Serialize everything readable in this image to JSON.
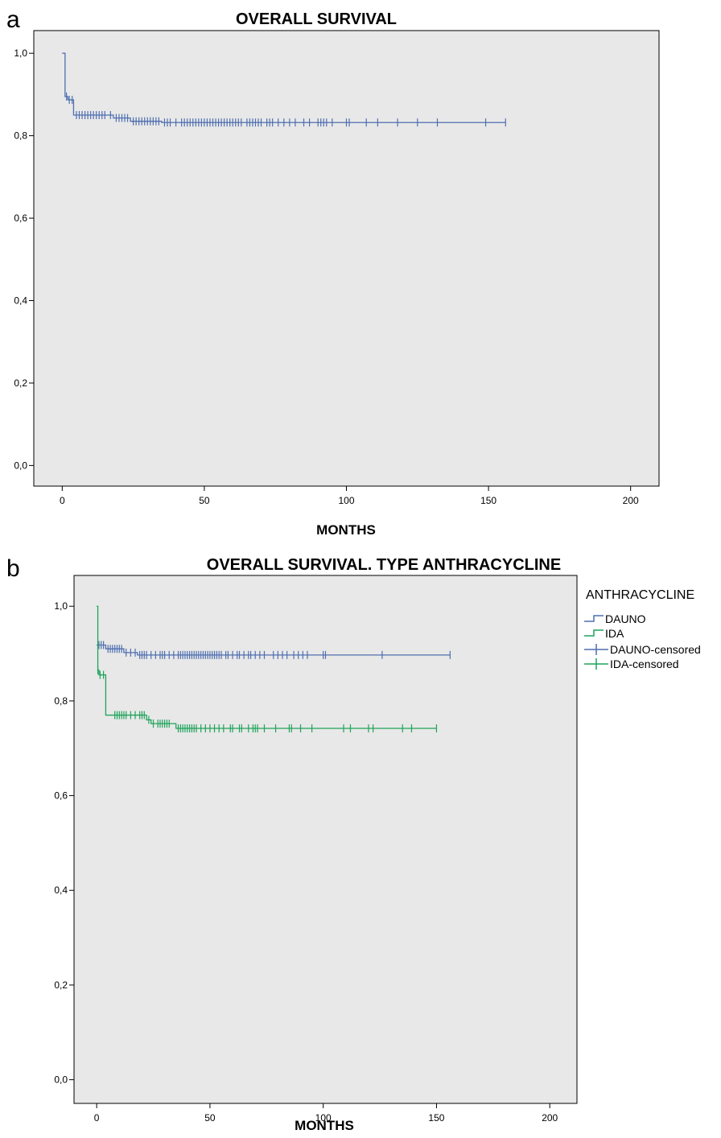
{
  "chart_data": [
    {
      "type": "line",
      "panel_label": "a",
      "title": "OVERALL SURVIVAL",
      "xlabel": "MONTHS",
      "ylabel": "",
      "xlim": [
        -10,
        210
      ],
      "ylim": [
        -0.05,
        1.055
      ],
      "xticks": [
        "0",
        "50",
        "100",
        "150",
        "200"
      ],
      "xtick_values": [
        0,
        50,
        100,
        150,
        200
      ],
      "yticks": [
        "0,0",
        "0,2",
        "0,4",
        "0,6",
        "0,8",
        "1,0"
      ],
      "ytick_values": [
        0,
        0.2,
        0.4,
        0.6,
        0.8,
        1.0
      ],
      "background": "#e8e8e8",
      "grid": false,
      "series": [
        {
          "color": "#4f6fb0",
          "steps": [
            [
              0,
              1.0
            ],
            [
              1,
              0.895
            ],
            [
              2,
              0.887
            ],
            [
              4,
              0.85
            ],
            [
              18,
              0.843
            ],
            [
              24,
              0.835
            ],
            [
              35,
              0.832
            ],
            [
              156,
              0.832
            ]
          ],
          "censored": [
            1.5,
            2.5,
            3.5,
            5,
            6,
            7,
            8,
            9,
            10,
            11,
            12,
            13,
            14,
            15,
            17,
            19,
            20,
            21,
            22,
            23,
            25,
            26,
            27,
            28,
            29,
            30,
            31,
            32,
            33,
            34,
            36,
            37,
            38,
            40,
            42,
            43,
            44,
            45,
            46,
            47,
            48,
            49,
            50,
            51,
            52,
            53,
            54,
            55,
            56,
            57,
            58,
            59,
            60,
            61,
            62,
            63,
            65,
            66,
            67,
            68,
            69,
            70,
            72,
            73,
            74,
            76,
            78,
            80,
            82,
            85,
            87,
            90,
            91,
            92,
            93,
            95,
            100,
            101,
            107,
            111,
            118,
            125,
            132,
            149,
            156
          ]
        }
      ]
    },
    {
      "type": "line",
      "panel_label": "b",
      "title": "OVERALL SURVIVAL. TYPE ANTHRACYCLINE",
      "xlabel": "MONTHS",
      "ylabel": "",
      "xlim": [
        -10,
        212
      ],
      "ylim": [
        -0.05,
        1.065
      ],
      "xticks": [
        "0",
        "50",
        "100",
        "150",
        "200"
      ],
      "xtick_values": [
        0,
        50,
        100,
        150,
        200
      ],
      "yticks": [
        "0,0",
        "0,2",
        "0,4",
        "0,6",
        "0,8",
        "1,0"
      ],
      "ytick_values": [
        0,
        0.2,
        0.4,
        0.6,
        0.8,
        1.0
      ],
      "background": "#e8e8e8",
      "grid": false,
      "legend_title": "ANTHRACYCLINE",
      "legend_position": "right",
      "legend": [
        "DAUNO",
        "IDA",
        "DAUNO-censored",
        "IDA-censored"
      ],
      "series": [
        {
          "name": "DAUNO",
          "color": "#4f6fb0",
          "steps": [
            [
              0,
              0.918
            ],
            [
              4,
              0.91
            ],
            [
              12,
              0.902
            ],
            [
              18,
              0.897
            ],
            [
              156,
              0.897
            ]
          ],
          "censored": [
            1,
            2,
            3,
            5,
            6,
            7,
            8,
            9,
            10,
            11,
            13,
            15,
            17,
            19,
            20,
            21,
            22,
            24,
            26,
            28,
            29,
            30,
            32,
            34,
            36,
            37,
            38,
            39,
            40,
            41,
            42,
            43,
            44,
            45,
            46,
            47,
            48,
            49,
            50,
            51,
            52,
            53,
            54,
            55,
            57,
            58,
            60,
            62,
            63,
            65,
            67,
            68,
            70,
            72,
            74,
            78,
            80,
            82,
            84,
            87,
            89,
            91,
            93,
            100,
            101,
            126,
            156
          ]
        },
        {
          "name": "IDA",
          "color": "#1ea35a",
          "steps": [
            [
              0,
              1.0
            ],
            [
              0.5,
              0.865
            ],
            [
              1,
              0.855
            ],
            [
              4,
              0.77
            ],
            [
              22,
              0.76
            ],
            [
              24,
              0.752
            ],
            [
              35,
              0.742
            ],
            [
              150,
              0.742
            ]
          ],
          "censored": [
            0.5,
            1.5,
            3,
            8,
            9,
            10,
            11,
            12,
            13,
            15,
            17,
            19,
            20,
            21,
            23,
            25,
            27,
            28,
            29,
            30,
            31,
            32,
            36,
            37,
            38,
            39,
            40,
            41,
            42,
            43,
            44,
            46,
            48,
            50,
            52,
            54,
            56,
            59,
            60,
            63,
            64,
            67,
            69,
            70,
            71,
            74,
            79,
            85,
            86,
            90,
            95,
            109,
            112,
            120,
            122,
            135,
            139,
            150
          ]
        }
      ]
    }
  ]
}
